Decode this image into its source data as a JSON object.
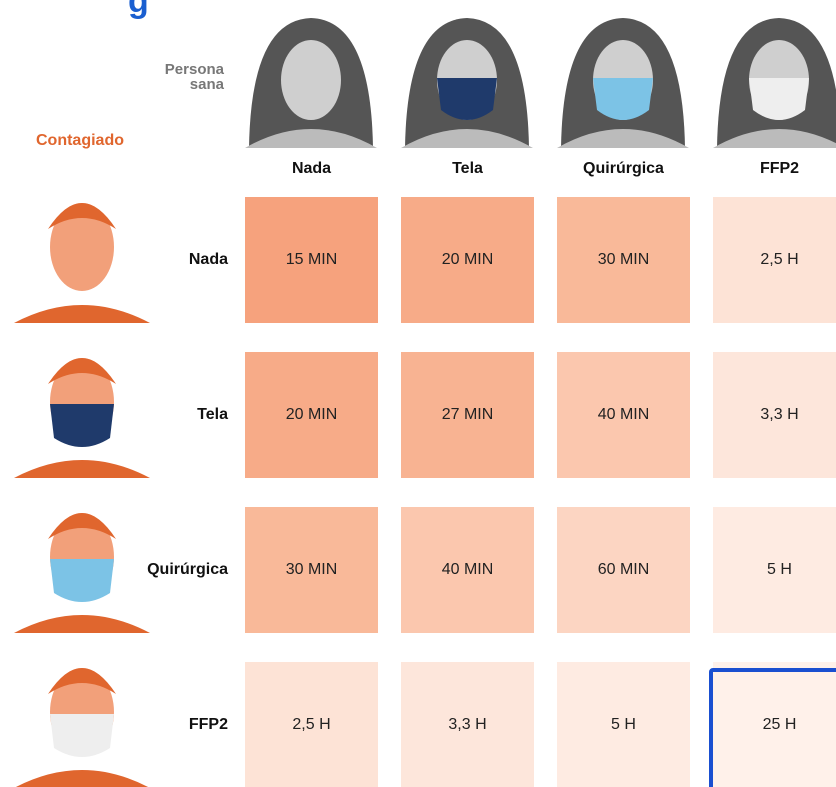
{
  "column_group_label": "Persona sana",
  "row_group_label": "Contagiado",
  "columns": [
    "Nada",
    "Tela",
    "Quirúrgica",
    "FFP2"
  ],
  "rows": [
    {
      "label": "Nada",
      "cells": [
        "15 MIN",
        "20 MIN",
        "30 MIN",
        "2,5 H"
      ],
      "colors": [
        "#f6a27d",
        "#f7ab88",
        "#f9b999",
        "#fde3d6"
      ]
    },
    {
      "label": "Tela",
      "cells": [
        "20 MIN",
        "27 MIN",
        "40 MIN",
        "3,3 H"
      ],
      "colors": [
        "#f7ab88",
        "#f8b392",
        "#fbc7ae",
        "#fde6db"
      ]
    },
    {
      "label": "Quirúrgica",
      "cells": [
        "30 MIN",
        "40 MIN",
        "60 MIN",
        "5 H"
      ],
      "colors": [
        "#f9b999",
        "#fbc7ae",
        "#fcd5c2",
        "#feebe2"
      ]
    },
    {
      "label": "FFP2",
      "cells": [
        "2,5 H",
        "3,3 H",
        "5 H",
        "25 H"
      ],
      "colors": [
        "#fde3d6",
        "#fde6db",
        "#feebe2",
        "#fff1ea"
      ]
    }
  ]
}
